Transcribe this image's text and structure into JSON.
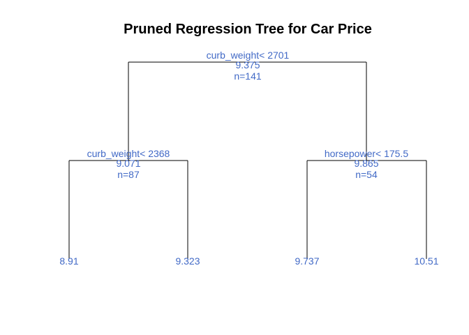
{
  "title": "Pruned Regression Tree for Car Price",
  "colors": {
    "label": "#4169c6",
    "edge": "#000000",
    "title": "#000000"
  },
  "tree": {
    "root": {
      "split": "curb_weight< 2701",
      "value": "9.375",
      "n": "n=141"
    },
    "left": {
      "split": "curb_weight< 2368",
      "value": "9.071",
      "n": "n=87"
    },
    "right": {
      "split": "horsepower< 175.5",
      "value": "9.865",
      "n": "n=54"
    },
    "leaves": [
      {
        "value": "8.91"
      },
      {
        "value": "9.323"
      },
      {
        "value": "9.737"
      },
      {
        "value": "10.51"
      }
    ]
  }
}
